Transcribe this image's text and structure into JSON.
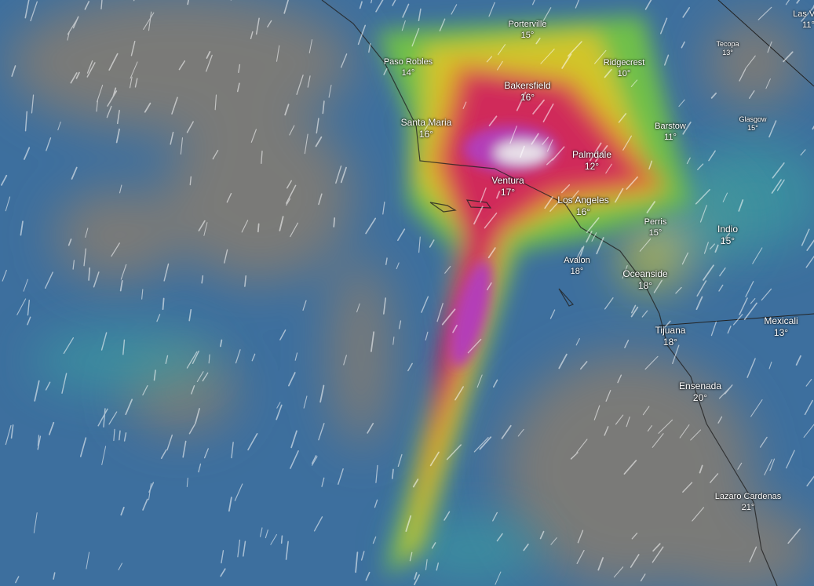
{
  "map": {
    "layer": "wind speed overlay with particle streamlines",
    "colors": {
      "ocean_low": "#3d6f9e",
      "calm": "#7a7a78",
      "moderate": "#3aa3a0",
      "green": "#6fc04a",
      "yellow": "#d2c52a",
      "orange": "#e07a2a",
      "red": "#d02a5a",
      "magenta": "#b43cb8",
      "peak": "#e8e0e8"
    }
  },
  "cities": [
    {
      "name": "Porterville",
      "temp": "15°"
    },
    {
      "name": "Las Veg",
      "temp": "11°"
    },
    {
      "name": "Tecopa",
      "temp": "13°"
    },
    {
      "name": "Paso Robles",
      "temp": "14°"
    },
    {
      "name": "Ridgecrest",
      "temp": "10°"
    },
    {
      "name": "Bakersfield",
      "temp": "16°"
    },
    {
      "name": "Santa Maria",
      "temp": "16°"
    },
    {
      "name": "Barstow",
      "temp": "11°"
    },
    {
      "name": "Glasgow",
      "temp": "15°"
    },
    {
      "name": "Palmdale",
      "temp": "12°"
    },
    {
      "name": "Ventura",
      "temp": "17°"
    },
    {
      "name": "Los Angeles",
      "temp": "16°"
    },
    {
      "name": "Perris",
      "temp": "15°"
    },
    {
      "name": "Indio",
      "temp": "15°"
    },
    {
      "name": "Avalon",
      "temp": "18°"
    },
    {
      "name": "Oceanside",
      "temp": "18°"
    },
    {
      "name": "Tijuana",
      "temp": "18°"
    },
    {
      "name": "Mexicali",
      "temp": "13°"
    },
    {
      "name": "Ensenada",
      "temp": "20°"
    },
    {
      "name": "Lazaro Cardenas",
      "temp": "21°"
    }
  ]
}
